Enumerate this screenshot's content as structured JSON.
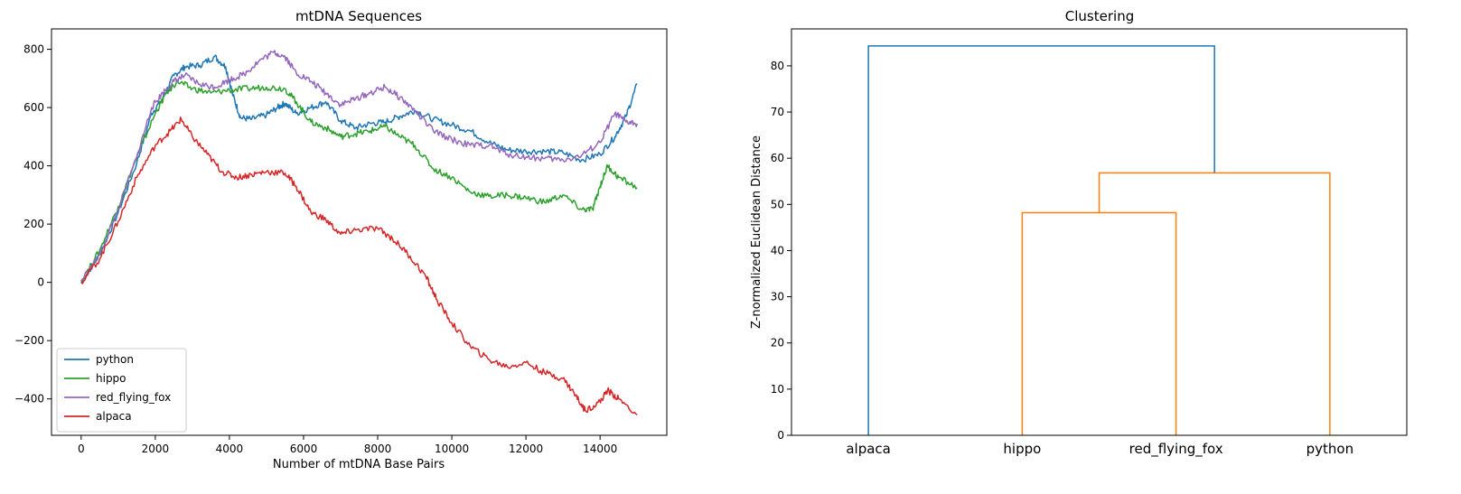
{
  "chart_data": [
    {
      "type": "line",
      "title": "mtDNA Sequences",
      "xlabel": "Number of mtDNA Base Pairs",
      "ylabel": "",
      "xlim": [
        -800,
        15800
      ],
      "ylim": [
        -525,
        870
      ],
      "xticks": [
        0,
        2000,
        4000,
        6000,
        8000,
        10000,
        12000,
        14000
      ],
      "yticks": [
        -400,
        -200,
        0,
        200,
        400,
        600,
        800
      ],
      "xtick_labels": [
        "0",
        "2000",
        "4000",
        "6000",
        "8000",
        "10000",
        "12000",
        "14000"
      ],
      "ytick_labels": [
        "−400",
        "−200",
        "0",
        "200",
        "400",
        "600",
        "800"
      ],
      "grid": false,
      "legend_position": "lower-left",
      "series": [
        {
          "name": "python",
          "color": "#1f77b4",
          "points": [
            [
              0,
              0
            ],
            [
              500,
              95
            ],
            [
              1000,
              240
            ],
            [
              1500,
              410
            ],
            [
              1900,
              580
            ],
            [
              2200,
              630
            ],
            [
              2500,
              710
            ],
            [
              2800,
              740
            ],
            [
              3200,
              745
            ],
            [
              3600,
              775
            ],
            [
              3900,
              740
            ],
            [
              4100,
              640
            ],
            [
              4300,
              565
            ],
            [
              4600,
              560
            ],
            [
              5000,
              575
            ],
            [
              5300,
              600
            ],
            [
              5500,
              615
            ],
            [
              5800,
              580
            ],
            [
              6200,
              600
            ],
            [
              6600,
              620
            ],
            [
              7000,
              555
            ],
            [
              7400,
              530
            ],
            [
              7800,
              545
            ],
            [
              8200,
              550
            ],
            [
              8600,
              570
            ],
            [
              9000,
              590
            ],
            [
              9500,
              560
            ],
            [
              10000,
              540
            ],
            [
              10500,
              520
            ],
            [
              11000,
              480
            ],
            [
              11500,
              455
            ],
            [
              12000,
              450
            ],
            [
              12500,
              450
            ],
            [
              13000,
              445
            ],
            [
              13500,
              420
            ],
            [
              14000,
              440
            ],
            [
              14400,
              500
            ],
            [
              14700,
              570
            ],
            [
              15000,
              680
            ]
          ]
        },
        {
          "name": "hippo",
          "color": "#2ca02c",
          "points": [
            [
              0,
              0
            ],
            [
              500,
              110
            ],
            [
              1000,
              260
            ],
            [
              1500,
              430
            ],
            [
              2000,
              580
            ],
            [
              2300,
              650
            ],
            [
              2600,
              690
            ],
            [
              3000,
              665
            ],
            [
              3500,
              650
            ],
            [
              4000,
              660
            ],
            [
              4500,
              665
            ],
            [
              5000,
              670
            ],
            [
              5500,
              665
            ],
            [
              5800,
              620
            ],
            [
              6200,
              550
            ],
            [
              6600,
              530
            ],
            [
              7000,
              500
            ],
            [
              7400,
              510
            ],
            [
              7800,
              520
            ],
            [
              8200,
              535
            ],
            [
              8600,
              500
            ],
            [
              9000,
              470
            ],
            [
              9500,
              390
            ],
            [
              10000,
              360
            ],
            [
              10500,
              310
            ],
            [
              11000,
              295
            ],
            [
              11500,
              300
            ],
            [
              12000,
              290
            ],
            [
              12500,
              275
            ],
            [
              13000,
              300
            ],
            [
              13500,
              250
            ],
            [
              13800,
              250
            ],
            [
              14000,
              330
            ],
            [
              14200,
              400
            ],
            [
              14500,
              360
            ],
            [
              15000,
              325
            ]
          ]
        },
        {
          "name": "red_flying_fox",
          "color": "#9467bd",
          "points": [
            [
              0,
              5
            ],
            [
              500,
              95
            ],
            [
              1000,
              250
            ],
            [
              1500,
              430
            ],
            [
              1900,
              600
            ],
            [
              2200,
              650
            ],
            [
              2500,
              690
            ],
            [
              2800,
              710
            ],
            [
              3200,
              680
            ],
            [
              3600,
              670
            ],
            [
              4000,
              695
            ],
            [
              4400,
              715
            ],
            [
              4800,
              760
            ],
            [
              5200,
              790
            ],
            [
              5500,
              775
            ],
            [
              5800,
              720
            ],
            [
              6200,
              690
            ],
            [
              6600,
              650
            ],
            [
              7000,
              610
            ],
            [
              7400,
              630
            ],
            [
              7800,
              650
            ],
            [
              8200,
              670
            ],
            [
              8600,
              635
            ],
            [
              9000,
              590
            ],
            [
              9500,
              520
            ],
            [
              10000,
              490
            ],
            [
              10500,
              470
            ],
            [
              11000,
              470
            ],
            [
              11500,
              440
            ],
            [
              12000,
              430
            ],
            [
              12500,
              425
            ],
            [
              13000,
              420
            ],
            [
              13500,
              435
            ],
            [
              14000,
              480
            ],
            [
              14400,
              580
            ],
            [
              14700,
              550
            ],
            [
              15000,
              545
            ]
          ]
        },
        {
          "name": "alpaca",
          "color": "#d62728",
          "points": [
            [
              0,
              0
            ],
            [
              500,
              80
            ],
            [
              1000,
              210
            ],
            [
              1500,
              360
            ],
            [
              2000,
              470
            ],
            [
              2400,
              520
            ],
            [
              2700,
              560
            ],
            [
              3000,
              500
            ],
            [
              3400,
              440
            ],
            [
              3800,
              380
            ],
            [
              4200,
              360
            ],
            [
              4600,
              370
            ],
            [
              5000,
              380
            ],
            [
              5500,
              375
            ],
            [
              5800,
              330
            ],
            [
              6200,
              240
            ],
            [
              6600,
              215
            ],
            [
              7000,
              165
            ],
            [
              7400,
              180
            ],
            [
              8000,
              185
            ],
            [
              8400,
              150
            ],
            [
              8800,
              100
            ],
            [
              9300,
              20
            ],
            [
              9600,
              -60
            ],
            [
              10000,
              -140
            ],
            [
              10500,
              -220
            ],
            [
              11000,
              -265
            ],
            [
              11500,
              -290
            ],
            [
              12000,
              -275
            ],
            [
              12500,
              -310
            ],
            [
              13000,
              -330
            ],
            [
              13300,
              -380
            ],
            [
              13600,
              -440
            ],
            [
              14000,
              -410
            ],
            [
              14200,
              -370
            ],
            [
              14500,
              -400
            ],
            [
              15000,
              -455
            ]
          ]
        }
      ]
    },
    {
      "type": "dendrogram",
      "title": "Clustering",
      "xlabel": "",
      "ylabel": "Z-normalized Euclidean Distance",
      "ylim": [
        0,
        88
      ],
      "yticks": [
        0,
        10,
        20,
        30,
        40,
        50,
        60,
        70,
        80
      ],
      "ytick_labels": [
        "0",
        "10",
        "20",
        "30",
        "40",
        "50",
        "60",
        "70",
        "80"
      ],
      "leaves": [
        "alpaca",
        "hippo",
        "red_flying_fox",
        "python"
      ],
      "merges": [
        {
          "left": "hippo",
          "right": "red_flying_fox",
          "height": 48.2,
          "color": "#ff7f0e"
        },
        {
          "left": "hippo+red_flying_fox",
          "right": "python",
          "height": 56.8,
          "color": "#ff7f0e"
        },
        {
          "left": "alpaca",
          "right": "hippo+red_flying_fox+python",
          "height": 84.3,
          "color": "#1f77b4"
        }
      ],
      "grid": false
    }
  ]
}
